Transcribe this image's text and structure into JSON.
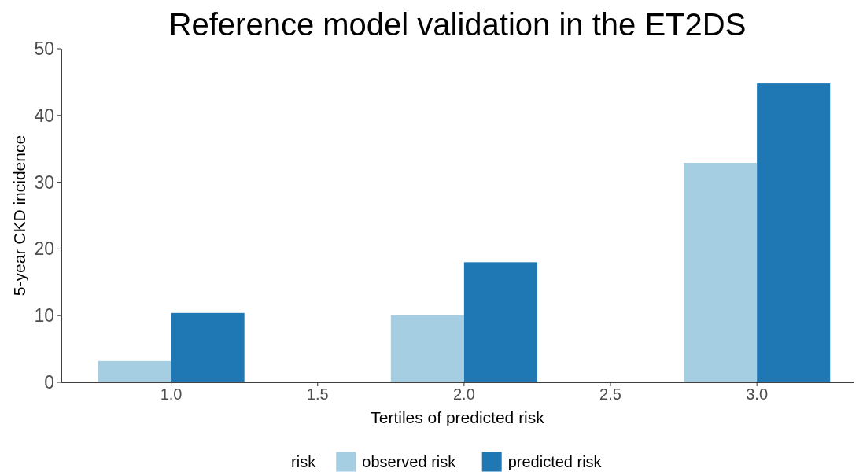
{
  "chart_data": {
    "type": "bar",
    "title": "Reference model validation in the ET2DS",
    "xlabel": "Tertiles of predicted risk",
    "ylabel": "5-year CKD incidence",
    "legend_title": "risk",
    "x": [
      1,
      2,
      3
    ],
    "series": [
      {
        "name": "observed risk",
        "color": "#a6cee3",
        "values": [
          3.2,
          10.1,
          32.9
        ]
      },
      {
        "name": "predicted risk",
        "color": "#1f78b4",
        "values": [
          10.4,
          18.0,
          44.8
        ]
      }
    ],
    "xlim": [
      0.625,
      3.33
    ],
    "xticks": [
      {
        "value": 1,
        "label": "1.0"
      },
      {
        "value": 1.5,
        "label": "1.5"
      },
      {
        "value": 2,
        "label": "2.0"
      },
      {
        "value": 2.5,
        "label": "2.5"
      },
      {
        "value": 3,
        "label": "3.0"
      }
    ],
    "ylim": [
      0,
      50
    ],
    "yticks": [
      0,
      10,
      20,
      30,
      40,
      50
    ],
    "grid": false,
    "legend": "bottom"
  }
}
